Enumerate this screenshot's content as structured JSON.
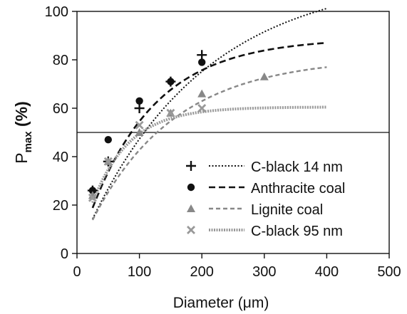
{
  "chart_data": {
    "type": "scatter",
    "xlabel": "Diameter (",
    "xlabel_unit": "μm",
    "xlabel_close": ")",
    "ylabel": "P",
    "ylabel_sub": "max",
    "ylabel_suffix": " (%)",
    "xlim": [
      0,
      500
    ],
    "ylim": [
      0,
      100
    ],
    "xticks": [
      0,
      100,
      200,
      300,
      400,
      500
    ],
    "yticks": [
      0,
      20,
      40,
      60,
      80,
      100
    ],
    "reference_line_y": 50,
    "legend_position": "bottom-right",
    "series": [
      {
        "name": "C-black 14 nm",
        "marker": "plus",
        "line": "dotted",
        "color": "#111111",
        "x": [
          25,
          50,
          100,
          150,
          200
        ],
        "y": [
          26,
          38,
          60,
          71,
          82
        ],
        "fit": {
          "max": 115,
          "k": 0.0053
        }
      },
      {
        "name": "Anthracite coal",
        "marker": "circle",
        "line": "dashed",
        "color": "#111111",
        "x": [
          25,
          50,
          100,
          150,
          200
        ],
        "y": [
          26,
          47,
          63,
          71,
          79
        ],
        "fit": {
          "max": 89,
          "k": 0.0095
        }
      },
      {
        "name": "Lignite coal",
        "marker": "triangle",
        "line": "dashed",
        "color": "#888888",
        "x": [
          25,
          50,
          100,
          150,
          200,
          300
        ],
        "y": [
          24,
          38,
          50,
          58,
          66,
          73
        ],
        "fit": {
          "max": 81,
          "k": 0.0075
        }
      },
      {
        "name": "C-black 95 nm",
        "marker": "x",
        "line": "dotted",
        "color": "#999999",
        "x": [
          25,
          50,
          100,
          150,
          200
        ],
        "y": [
          23,
          38,
          53,
          58,
          60
        ],
        "fit": {
          "max": 60.5,
          "k": 0.017
        }
      }
    ]
  }
}
